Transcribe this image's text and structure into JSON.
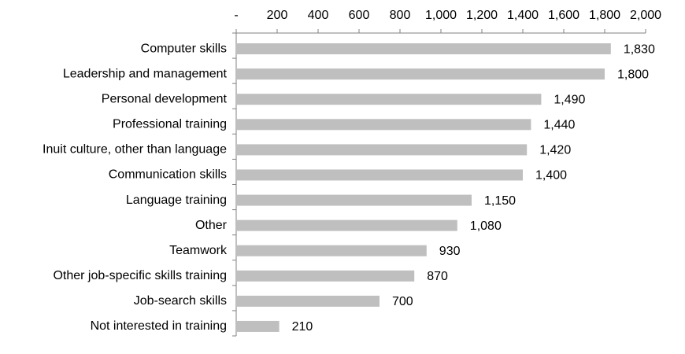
{
  "chart_data": {
    "type": "bar",
    "orientation": "horizontal",
    "axis_position": "top",
    "color": "#bfbfbf",
    "categories": [
      "Computer skills",
      "Leadership and management",
      "Personal development",
      "Professional training",
      "Inuit culture, other than language",
      "Communication skills",
      "Language training",
      "Other",
      "Teamwork",
      "Other job-specific skills training",
      "Job-search skills",
      "Not interested in training"
    ],
    "values": [
      1830,
      1800,
      1490,
      1440,
      1420,
      1400,
      1150,
      1080,
      930,
      870,
      700,
      210
    ],
    "value_labels": [
      "1,830",
      "1,800",
      "1,490",
      "1,440",
      "1,420",
      "1,400",
      "1,150",
      "1,080",
      "930",
      "870",
      "700",
      "210"
    ],
    "xlim": [
      0,
      2000
    ],
    "xticks": [
      {
        "value": 0,
        "label": "-"
      },
      200,
      400,
      600,
      800,
      {
        "value": 1000,
        "label": "1,000"
      },
      {
        "value": 1200,
        "label": "1,200"
      },
      {
        "value": 1400,
        "label": "1,400"
      },
      {
        "value": 1600,
        "label": "1,600"
      },
      {
        "value": 1800,
        "label": "1,800"
      },
      {
        "value": 2000,
        "label": "2,000"
      }
    ],
    "grid": false
  }
}
